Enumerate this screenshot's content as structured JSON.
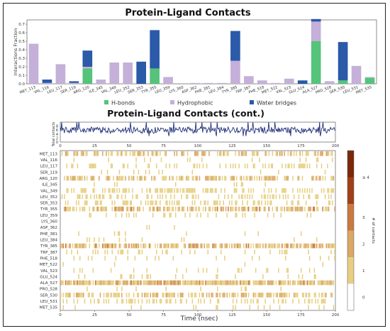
{
  "chart_data": [
    {
      "type": "bar",
      "title": "Protein-Ligand Contacts",
      "ylabel": "Interactions Fraction",
      "ylim": [
        0,
        0.75
      ],
      "yticks": [
        "0.0",
        "0.1",
        "0.2",
        "0.3",
        "0.4",
        "0.5",
        "0.6",
        "0.7"
      ],
      "categories": [
        "MET_113",
        "VAL_116",
        "LEU_117",
        "SER_119",
        "ARG_120",
        "ILE_345",
        "VAL_349",
        "LEU_352",
        "SER_353",
        "TYR_355",
        "LEU_359",
        "LYS_360",
        "ASP_362",
        "PHE_381",
        "LEU_384",
        "TYR_385",
        "TRP_387",
        "PHE_518",
        "MET_522",
        "VAL_523",
        "GLU_524",
        "ALA_527",
        "PRO_528",
        "SER_530",
        "LEU_531",
        "MET_535"
      ],
      "series": [
        {
          "name": "H-bonds",
          "color": "#55c37a",
          "values": [
            0,
            0,
            0,
            0,
            0.18,
            0,
            0,
            0,
            0,
            0.18,
            0,
            0,
            0,
            0,
            0,
            0,
            0,
            0,
            0,
            0,
            0,
            0.5,
            0,
            0.04,
            0,
            0.07
          ]
        },
        {
          "name": "Hydrophobic",
          "color": "#c4b0d8",
          "values": [
            0.47,
            0.01,
            0.23,
            0.01,
            0.02,
            0.05,
            0.25,
            0.25,
            0,
            0,
            0.08,
            0,
            0.01,
            0.01,
            0.01,
            0.27,
            0.09,
            0.04,
            0.01,
            0.06,
            0,
            0.23,
            0.03,
            0,
            0.21,
            0.01
          ]
        },
        {
          "name": "Water bridges",
          "color": "#2a5aa8",
          "values": [
            0,
            0.04,
            0,
            0.02,
            0.19,
            0,
            0,
            0,
            0.26,
            0.45,
            0,
            0,
            0,
            0,
            0,
            0.35,
            0,
            0,
            0,
            0,
            0.04,
            0.03,
            0,
            0.45,
            0,
            0
          ]
        }
      ],
      "legend": [
        "H-bonds",
        "Hydrophobic",
        "Water bridges"
      ],
      "legend_position": "bottom"
    },
    {
      "type": "line",
      "title": "Protein-Ligand Contacts (cont.)",
      "ylabel": "Total contacts",
      "xlim": [
        0,
        200
      ],
      "ylim": [
        0,
        10
      ],
      "yticks": [
        "0",
        "2",
        "4",
        "6",
        "8"
      ],
      "xticks": [
        "0",
        "25",
        "50",
        "75",
        "100",
        "125",
        "150",
        "175",
        "200"
      ],
      "series": [
        {
          "color": "#1f2f7a",
          "mean": 6,
          "range": [
            3,
            10
          ]
        }
      ]
    },
    {
      "type": "heatmap",
      "xlabel": "Time (nsec)",
      "xlim": [
        0,
        200
      ],
      "xticks": [
        "0",
        "25",
        "50",
        "75",
        "100",
        "125",
        "150",
        "175",
        "200"
      ],
      "rows": [
        "MET_113",
        "VAL_116",
        "LEU_117",
        "SER_119",
        "ARG_120",
        "ILE_345",
        "VAL_349",
        "LEU_352",
        "SER_353",
        "TYR_355",
        "LEU_359",
        "LYS_360",
        "ASP_362",
        "PHE_381",
        "LEU_384",
        "TYR_385",
        "TRP_387",
        "PHE_518",
        "MET_522",
        "VAL_523",
        "GLU_524",
        "ALA_527",
        "PRO_528",
        "SER_530",
        "LEU_531",
        "MET_535"
      ],
      "occupancy": [
        0.5,
        0.04,
        0.25,
        0.08,
        0.55,
        0.06,
        0.35,
        0.3,
        0.32,
        0.65,
        0.12,
        0,
        0.02,
        0.02,
        0.03,
        0.7,
        0.15,
        0.06,
        0.03,
        0.1,
        0.08,
        0.9,
        0.05,
        0.6,
        0.3,
        0.1
      ],
      "colorbar": {
        "label": "# of contacts",
        "ticks": [
          "0",
          "1",
          "2",
          "3",
          "≥ 4"
        ],
        "colors": [
          "#ffffff",
          "#e6cf82",
          "#d9a766",
          "#c97a3f",
          "#a0401a",
          "#7a2808"
        ]
      }
    }
  ]
}
